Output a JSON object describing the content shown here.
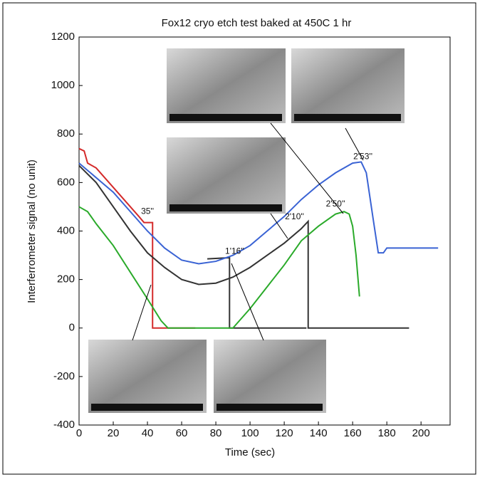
{
  "chart_data": {
    "type": "line",
    "title": "Fox12 cryo etch test baked at 450C 1 hr",
    "xlabel": "Time (sec)",
    "ylabel": "Interferrometer signal (no unit)",
    "xlim": [
      0,
      217
    ],
    "ylim": [
      -400,
      1200
    ],
    "xticks": [
      0,
      20,
      40,
      60,
      80,
      100,
      120,
      140,
      160,
      180,
      200
    ],
    "yticks": [
      -400,
      -200,
      0,
      200,
      400,
      600,
      800,
      1000,
      1200
    ],
    "series": [
      {
        "color": "#d42a2a",
        "x": [
          0,
          3,
          5,
          10,
          15,
          20,
          25,
          30,
          35,
          38,
          43,
          43,
          68
        ],
        "values": [
          740,
          730,
          680,
          660,
          620,
          580,
          540,
          500,
          460,
          435,
          435,
          0,
          0
        ]
      },
      {
        "color": "#333333",
        "x": [
          0,
          10,
          20,
          30,
          40,
          50,
          60,
          70,
          80,
          90,
          100,
          110,
          120,
          130,
          134,
          134,
          193
        ],
        "values": [
          670,
          600,
          500,
          400,
          310,
          250,
          200,
          180,
          185,
          210,
          250,
          300,
          350,
          410,
          440,
          0,
          0
        ]
      },
      {
        "color": "#333333",
        "x": [
          75,
          88,
          88,
          133
        ],
        "values": [
          285,
          290,
          0,
          0
        ]
      },
      {
        "color": "#2aaa2a",
        "x": [
          0,
          5,
          10,
          20,
          30,
          40,
          48,
          52,
          88,
          90,
          95,
          100,
          110,
          120,
          130,
          140,
          150,
          155,
          158,
          160,
          162,
          164
        ],
        "values": [
          500,
          480,
          430,
          340,
          230,
          120,
          30,
          0,
          0,
          0,
          40,
          80,
          170,
          260,
          360,
          420,
          470,
          480,
          470,
          420,
          300,
          130
        ]
      },
      {
        "color": "#3a63d4",
        "x": [
          0,
          5,
          10,
          20,
          30,
          40,
          50,
          60,
          70,
          80,
          90,
          100,
          110,
          120,
          130,
          140,
          150,
          160,
          165,
          168,
          172,
          175,
          178,
          180,
          210
        ],
        "values": [
          680,
          650,
          620,
          560,
          480,
          400,
          330,
          280,
          265,
          275,
          300,
          340,
          400,
          460,
          530,
          590,
          640,
          680,
          685,
          640,
          450,
          310,
          310,
          330,
          330
        ]
      }
    ],
    "annotations": [
      "35''",
      "1'16''",
      "2'10''",
      "2'50''",
      "2'53''"
    ]
  }
}
